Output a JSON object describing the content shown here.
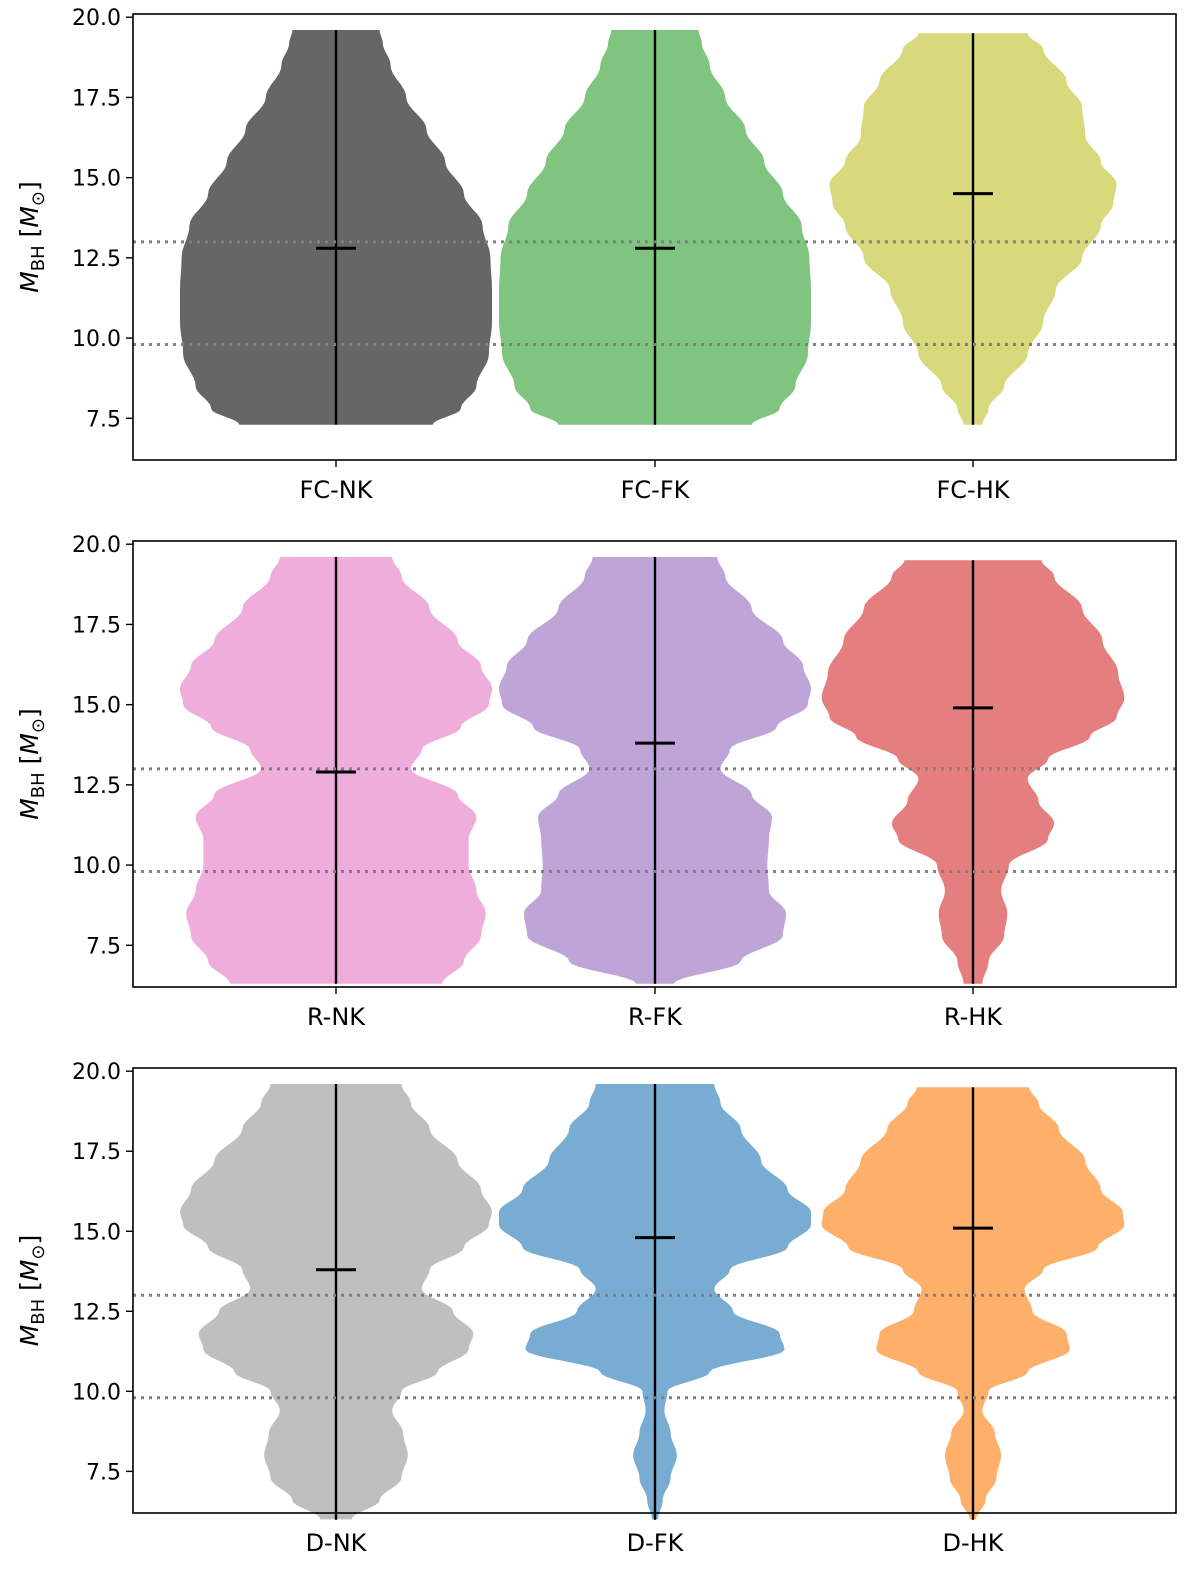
{
  "ylabel": {
    "main": "M",
    "sub": "BH",
    "unit_open": " [",
    "unit_main": "M",
    "unit_sub": "⊙",
    "unit_close": "]"
  },
  "chart_data": [
    {
      "type": "violin",
      "ylim": [
        6.2,
        20.1
      ],
      "yticks": [
        7.5,
        10.0,
        12.5,
        15.0,
        17.5,
        20.0
      ],
      "ytick_labels": [
        "7.5",
        "10.0",
        "12.5",
        "15.0",
        "17.5",
        "20.0"
      ],
      "reference_lines": [
        9.8,
        13.0
      ],
      "categories": [
        "FC-NK",
        "FC-FK",
        "FC-HK"
      ],
      "series": [
        {
          "label": "FC-NK",
          "color": "#666666",
          "min": 7.3,
          "max": 19.6,
          "median": 12.8,
          "profile": [
            [
              7.3,
              0.62
            ],
            [
              7.8,
              0.8
            ],
            [
              8.5,
              0.9
            ],
            [
              9.5,
              0.98
            ],
            [
              10.5,
              1.0
            ],
            [
              11.5,
              1.0
            ],
            [
              12.5,
              0.99
            ],
            [
              13.5,
              0.94
            ],
            [
              14.5,
              0.82
            ],
            [
              15.5,
              0.7
            ],
            [
              16.5,
              0.58
            ],
            [
              17.5,
              0.45
            ],
            [
              18.5,
              0.35
            ],
            [
              19.2,
              0.3
            ],
            [
              19.6,
              0.28
            ]
          ]
        },
        {
          "label": "FC-FK",
          "color": "#7fc57f",
          "min": 7.3,
          "max": 19.6,
          "median": 12.8,
          "profile": [
            [
              7.3,
              0.62
            ],
            [
              7.8,
              0.8
            ],
            [
              8.5,
              0.9
            ],
            [
              9.5,
              0.98
            ],
            [
              10.5,
              1.0
            ],
            [
              11.5,
              1.0
            ],
            [
              12.5,
              0.99
            ],
            [
              13.5,
              0.94
            ],
            [
              14.5,
              0.82
            ],
            [
              15.5,
              0.7
            ],
            [
              16.5,
              0.58
            ],
            [
              17.5,
              0.45
            ],
            [
              18.5,
              0.35
            ],
            [
              19.2,
              0.3
            ],
            [
              19.6,
              0.28
            ]
          ]
        },
        {
          "label": "FC-HK",
          "color": "#d8d87c",
          "min": 7.3,
          "max": 19.5,
          "median": 14.5,
          "profile": [
            [
              7.3,
              0.06
            ],
            [
              7.8,
              0.1
            ],
            [
              8.5,
              0.2
            ],
            [
              9.5,
              0.35
            ],
            [
              10.5,
              0.45
            ],
            [
              11.5,
              0.53
            ],
            [
              12.5,
              0.7
            ],
            [
              13.5,
              0.82
            ],
            [
              14.2,
              0.9
            ],
            [
              14.8,
              0.92
            ],
            [
              15.5,
              0.82
            ],
            [
              16.3,
              0.72
            ],
            [
              17.2,
              0.7
            ],
            [
              18.0,
              0.6
            ],
            [
              19.0,
              0.45
            ],
            [
              19.5,
              0.35
            ]
          ]
        }
      ]
    },
    {
      "type": "violin",
      "ylim": [
        6.2,
        20.1
      ],
      "yticks": [
        7.5,
        10.0,
        12.5,
        15.0,
        17.5,
        20.0
      ],
      "ytick_labels": [
        "7.5",
        "10.0",
        "12.5",
        "15.0",
        "17.5",
        "20.0"
      ],
      "reference_lines": [
        9.8,
        13.0
      ],
      "categories": [
        "R-NK",
        "R-FK",
        "R-HK"
      ],
      "series": [
        {
          "label": "R-NK",
          "color": "#efaddb",
          "min": 6.3,
          "max": 19.6,
          "median": 12.9,
          "profile": [
            [
              6.3,
              0.68
            ],
            [
              7.0,
              0.82
            ],
            [
              7.8,
              0.93
            ],
            [
              8.5,
              0.96
            ],
            [
              9.2,
              0.9
            ],
            [
              10.0,
              0.85
            ],
            [
              10.8,
              0.85
            ],
            [
              11.5,
              0.9
            ],
            [
              12.2,
              0.78
            ],
            [
              13.0,
              0.48
            ],
            [
              13.6,
              0.55
            ],
            [
              14.3,
              0.8
            ],
            [
              15.0,
              0.98
            ],
            [
              15.5,
              1.0
            ],
            [
              16.2,
              0.93
            ],
            [
              17.0,
              0.78
            ],
            [
              18.0,
              0.6
            ],
            [
              19.0,
              0.42
            ],
            [
              19.6,
              0.36
            ]
          ]
        },
        {
          "label": "R-FK",
          "color": "#bfa5d7",
          "min": 6.3,
          "max": 19.6,
          "median": 13.8,
          "profile": [
            [
              6.3,
              0.12
            ],
            [
              7.0,
              0.55
            ],
            [
              7.8,
              0.82
            ],
            [
              8.5,
              0.84
            ],
            [
              9.2,
              0.73
            ],
            [
              10.0,
              0.72
            ],
            [
              10.8,
              0.73
            ],
            [
              11.5,
              0.75
            ],
            [
              12.2,
              0.62
            ],
            [
              13.0,
              0.42
            ],
            [
              13.6,
              0.48
            ],
            [
              14.3,
              0.78
            ],
            [
              15.0,
              0.98
            ],
            [
              15.5,
              1.0
            ],
            [
              16.2,
              0.95
            ],
            [
              17.0,
              0.82
            ],
            [
              18.0,
              0.62
            ],
            [
              19.0,
              0.45
            ],
            [
              19.6,
              0.4
            ]
          ]
        },
        {
          "label": "R-HK",
          "color": "#e57e7e",
          "min": 6.3,
          "max": 19.5,
          "median": 14.9,
          "profile": [
            [
              6.3,
              0.06
            ],
            [
              7.0,
              0.1
            ],
            [
              7.8,
              0.2
            ],
            [
              8.5,
              0.22
            ],
            [
              9.2,
              0.18
            ],
            [
              10.0,
              0.23
            ],
            [
              10.8,
              0.48
            ],
            [
              11.3,
              0.52
            ],
            [
              12.0,
              0.42
            ],
            [
              12.7,
              0.35
            ],
            [
              13.3,
              0.48
            ],
            [
              14.0,
              0.75
            ],
            [
              14.6,
              0.92
            ],
            [
              15.2,
              0.97
            ],
            [
              16.0,
              0.93
            ],
            [
              17.0,
              0.83
            ],
            [
              18.0,
              0.7
            ],
            [
              19.0,
              0.52
            ],
            [
              19.5,
              0.44
            ]
          ]
        }
      ]
    },
    {
      "type": "violin",
      "ylim": [
        6.2,
        20.1
      ],
      "yticks": [
        7.5,
        10.0,
        12.5,
        15.0,
        17.5,
        20.0
      ],
      "ytick_labels": [
        "7.5",
        "10.0",
        "12.5",
        "15.0",
        "17.5",
        "20.0"
      ],
      "reference_lines": [
        9.8,
        13.0
      ],
      "categories": [
        "D-NK",
        "D-FK",
        "D-HK"
      ],
      "series": [
        {
          "label": "D-NK",
          "color": "#bfbfbf",
          "min": 6.0,
          "max": 19.6,
          "median": 13.8,
          "profile": [
            [
              6.0,
              0.1
            ],
            [
              6.6,
              0.28
            ],
            [
              7.3,
              0.42
            ],
            [
              8.0,
              0.46
            ],
            [
              8.7,
              0.43
            ],
            [
              9.4,
              0.36
            ],
            [
              10.0,
              0.42
            ],
            [
              10.6,
              0.65
            ],
            [
              11.3,
              0.85
            ],
            [
              11.8,
              0.88
            ],
            [
              12.5,
              0.75
            ],
            [
              13.2,
              0.55
            ],
            [
              13.8,
              0.6
            ],
            [
              14.5,
              0.82
            ],
            [
              15.2,
              0.98
            ],
            [
              15.6,
              1.0
            ],
            [
              16.3,
              0.93
            ],
            [
              17.2,
              0.78
            ],
            [
              18.2,
              0.6
            ],
            [
              19.0,
              0.48
            ],
            [
              19.6,
              0.42
            ]
          ]
        },
        {
          "label": "D-FK",
          "color": "#78acd3",
          "min": 6.0,
          "max": 19.6,
          "median": 14.8,
          "profile": [
            [
              6.0,
              0.02
            ],
            [
              6.6,
              0.05
            ],
            [
              7.3,
              0.1
            ],
            [
              8.0,
              0.14
            ],
            [
              8.7,
              0.1
            ],
            [
              9.4,
              0.06
            ],
            [
              10.0,
              0.08
            ],
            [
              10.6,
              0.35
            ],
            [
              11.3,
              0.83
            ],
            [
              11.8,
              0.8
            ],
            [
              12.5,
              0.5
            ],
            [
              13.2,
              0.38
            ],
            [
              13.8,
              0.48
            ],
            [
              14.5,
              0.85
            ],
            [
              15.2,
              1.0
            ],
            [
              15.6,
              1.0
            ],
            [
              16.3,
              0.85
            ],
            [
              17.2,
              0.68
            ],
            [
              18.2,
              0.55
            ],
            [
              19.0,
              0.42
            ],
            [
              19.6,
              0.38
            ]
          ]
        },
        {
          "label": "D-HK",
          "color": "#feb06b",
          "min": 6.0,
          "max": 19.5,
          "median": 15.1,
          "profile": [
            [
              6.0,
              0.02
            ],
            [
              6.6,
              0.08
            ],
            [
              7.3,
              0.15
            ],
            [
              8.0,
              0.18
            ],
            [
              8.7,
              0.14
            ],
            [
              9.4,
              0.06
            ],
            [
              10.0,
              0.1
            ],
            [
              10.6,
              0.35
            ],
            [
              11.3,
              0.62
            ],
            [
              11.8,
              0.6
            ],
            [
              12.5,
              0.38
            ],
            [
              13.2,
              0.33
            ],
            [
              13.8,
              0.45
            ],
            [
              14.5,
              0.8
            ],
            [
              15.2,
              0.97
            ],
            [
              15.6,
              0.96
            ],
            [
              16.3,
              0.82
            ],
            [
              17.2,
              0.72
            ],
            [
              18.2,
              0.55
            ],
            [
              19.0,
              0.42
            ],
            [
              19.5,
              0.36
            ]
          ]
        }
      ]
    }
  ]
}
